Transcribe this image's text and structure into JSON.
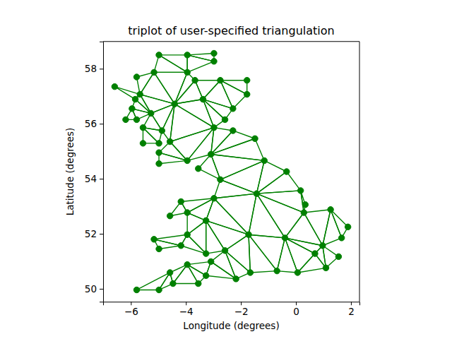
{
  "chart_data": {
    "type": "triplot",
    "title": "triplot of user-specified triangulation",
    "x_label": "Longitude (degrees)",
    "y_label": "Latitude (degrees)",
    "color": "#008000",
    "marker": "o",
    "line_style": "solid",
    "x": [
      -5.79,
      -4.58,
      -3.95,
      -3.09,
      -2.58,
      -3.27,
      -4.18,
      -4.98,
      -5.16,
      -3.95,
      -3.95,
      -4.58,
      -4.18,
      -2.98,
      -2.75,
      -3.55,
      -3.09,
      -3.95,
      -4.98,
      -4.98,
      -4.58,
      -4.87,
      -4.98,
      -5.56,
      -5.56,
      -5.27,
      -5.79,
      -6.19,
      -5.96,
      -5.84,
      -6.59,
      -5.67,
      -5.79,
      -5.16,
      -4.98,
      -3.95,
      -2.98,
      -2.98,
      -3.95,
      -3.67,
      -2.75,
      -1.78,
      -1.78,
      -2.29,
      -2.58,
      -2.98,
      -2.29,
      -1.49,
      -1.15,
      -0.34,
      0.17,
      0.34,
      0.29,
      1.26,
      1.89,
      1.66,
      0.97,
      0.69,
      1.55,
      1.09,
      0.06,
      -0.69,
      -1.66,
      -2.18,
      -3.27,
      -3.55,
      -4.47,
      -4.98,
      -1.72,
      -0.4,
      -3.27,
      -1.43,
      -4.41,
      -3.38
    ],
    "y": [
      49.96,
      50.59,
      50.88,
      50.99,
      51.39,
      51.28,
      51.57,
      51.45,
      51.8,
      51.97,
      52.77,
      52.65,
      53.17,
      53.29,
      53.97,
      54.37,
      54.89,
      54.66,
      54.55,
      54.95,
      55.35,
      55.75,
      55.29,
      55.29,
      55.86,
      56.38,
      56.15,
      56.15,
      56.55,
      56.89,
      57.35,
      57.07,
      57.7,
      57.87,
      58.5,
      58.5,
      58.56,
      58.27,
      57.87,
      57.58,
      57.58,
      57.58,
      57.07,
      56.55,
      56.15,
      55.86,
      55.75,
      55.46,
      54.66,
      54.26,
      53.57,
      53.06,
      52.77,
      52.88,
      52.25,
      51.85,
      51.57,
      51.28,
      51.17,
      50.76,
      50.59,
      50.65,
      50.59,
      50.36,
      50.48,
      50.19,
      50.19,
      49.96,
      51.97,
      51.85,
      52.48,
      53.46,
      56.72,
      56.89
    ],
    "triangles": [
      [
        67,
        66,
        1
      ],
      [
        65,
        2,
        66
      ],
      [
        1,
        66,
        2
      ],
      [
        64,
        2,
        65
      ],
      [
        63,
        3,
        64
      ],
      [
        60,
        59,
        57
      ],
      [
        2,
        64,
        3
      ],
      [
        3,
        63,
        4
      ],
      [
        0,
        67,
        1
      ],
      [
        62,
        4,
        63
      ],
      [
        57,
        59,
        56
      ],
      [
        59,
        58,
        56
      ],
      [
        61,
        60,
        69
      ],
      [
        57,
        69,
        60
      ],
      [
        4,
        62,
        68
      ],
      [
        6,
        5,
        9
      ],
      [
        61,
        68,
        62
      ],
      [
        69,
        68,
        61
      ],
      [
        9,
        5,
        70
      ],
      [
        6,
        8,
        7
      ],
      [
        4,
        70,
        5
      ],
      [
        8,
        6,
        9
      ],
      [
        56,
        69,
        57
      ],
      [
        69,
        56,
        52
      ],
      [
        70,
        10,
        9
      ],
      [
        54,
        53,
        55
      ],
      [
        56,
        55,
        53
      ],
      [
        68,
        70,
        4
      ],
      [
        52,
        56,
        53
      ],
      [
        11,
        10,
        12
      ],
      [
        69,
        71,
        68
      ],
      [
        68,
        13,
        70
      ],
      [
        10,
        70,
        13
      ],
      [
        51,
        50,
        52
      ],
      [
        13,
        68,
        71
      ],
      [
        52,
        71,
        69
      ],
      [
        12,
        10,
        13
      ],
      [
        71,
        52,
        50
      ],
      [
        71,
        14,
        13
      ],
      [
        50,
        49,
        71
      ],
      [
        49,
        48,
        71
      ],
      [
        14,
        16,
        15
      ],
      [
        14,
        71,
        48
      ],
      [
        17,
        19,
        18
      ],
      [
        17,
        20,
        19
      ],
      [
        48,
        16,
        14
      ],
      [
        48,
        47,
        16
      ],
      [
        47,
        46,
        16
      ],
      [
        16,
        46,
        45
      ],
      [
        23,
        22,
        24
      ],
      [
        21,
        24,
        22
      ],
      [
        17,
        16,
        45
      ],
      [
        20,
        17,
        45
      ],
      [
        21,
        25,
        24
      ],
      [
        27,
        26,
        28
      ],
      [
        20,
        72,
        21
      ],
      [
        25,
        21,
        72
      ],
      [
        45,
        72,
        20
      ],
      [
        25,
        28,
        26
      ],
      [
        44,
        73,
        45
      ],
      [
        72,
        45,
        73
      ],
      [
        28,
        25,
        29
      ],
      [
        29,
        25,
        31
      ],
      [
        43,
        73,
        44
      ],
      [
        73,
        43,
        40
      ],
      [
        72,
        73,
        39
      ],
      [
        72,
        31,
        25
      ],
      [
        42,
        40,
        43
      ],
      [
        31,
        30,
        29
      ],
      [
        39,
        73,
        40
      ],
      [
        42,
        41,
        40
      ],
      [
        72,
        33,
        31
      ],
      [
        32,
        31,
        33
      ],
      [
        39,
        38,
        72
      ],
      [
        33,
        72,
        38
      ],
      [
        33,
        38,
        34
      ],
      [
        37,
        35,
        38
      ],
      [
        34,
        38,
        35
      ],
      [
        35,
        37,
        36
      ]
    ],
    "xlim": [
      -7.01,
      2.31
    ],
    "ylim": [
      49.53,
      58.99
    ],
    "xticks": [
      {
        "value": -6,
        "label": "−6"
      },
      {
        "value": -4,
        "label": "−4"
      },
      {
        "value": -2,
        "label": "−2"
      },
      0,
      2
    ],
    "yticks": [
      50,
      52,
      54,
      56,
      58
    ]
  }
}
